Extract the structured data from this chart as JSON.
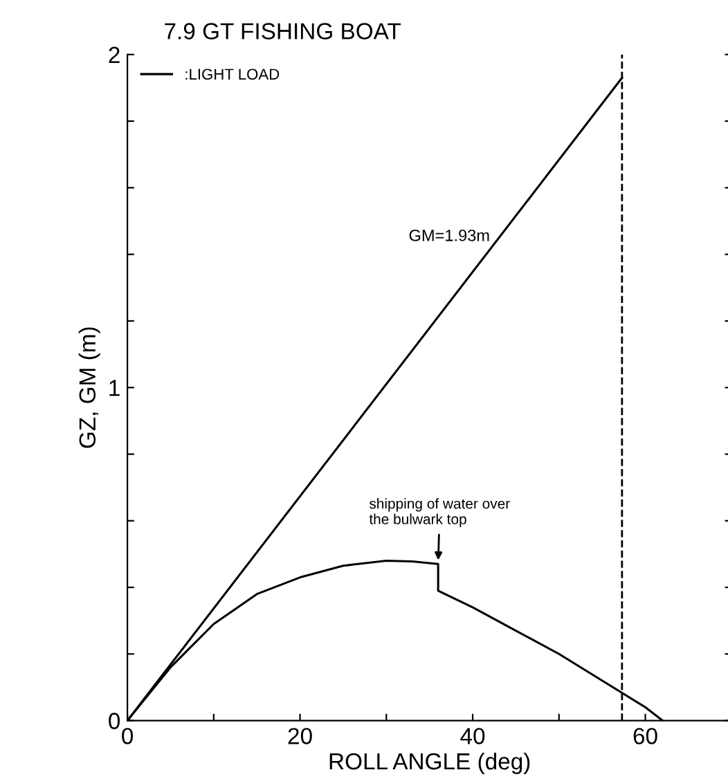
{
  "chart_data": {
    "type": "line",
    "title": "7.9 GT FISHING BOAT",
    "xlabel": "ROLL ANGLE (deg)",
    "ylabel": "GZ, GM (m)",
    "series": [
      {
        "name": ":LIGHT LOAD",
        "color": "#000000",
        "x": [
          0,
          5,
          10,
          15,
          20,
          25,
          30,
          33,
          36,
          36,
          40,
          45,
          50,
          55,
          60,
          62
        ],
        "values": [
          0,
          0.16,
          0.29,
          0.38,
          0.43,
          0.465,
          0.48,
          0.478,
          0.47,
          0.39,
          0.34,
          0.27,
          0.2,
          0.12,
          0.04,
          0
        ]
      },
      {
        "color": "#000000",
        "x": [
          0,
          57.3
        ],
        "values": [
          0,
          1.93
        ]
      }
    ],
    "ref_lines": [
      {
        "axis": "x",
        "value": 57.3,
        "label": null,
        "line_style": "dashed",
        "color": "#000000"
      }
    ],
    "annotations": [
      {
        "text": "GM=1.93m",
        "x": 42,
        "y": 1.44
      },
      {
        "text": "shipping of water over\nthe bulwark top",
        "x": 36,
        "y": 0.47
      }
    ],
    "xlim": [
      0,
      70
    ],
    "xticks": [
      0,
      {
        "value": 10,
        "label": null
      },
      20,
      {
        "value": 30,
        "label": null
      },
      40,
      {
        "value": 50,
        "label": null
      },
      60
    ],
    "ylim": [
      0,
      2
    ],
    "yticks": [
      0,
      {
        "value": 0.2,
        "label": null
      },
      {
        "value": 0.4,
        "label": null
      },
      {
        "value": 0.6,
        "label": null
      },
      {
        "value": 0.8,
        "label": null
      },
      1,
      {
        "value": 1.2,
        "label": null
      },
      {
        "value": 1.4,
        "label": null
      },
      {
        "value": 1.6,
        "label": null
      },
      {
        "value": 1.8,
        "label": null
      },
      2
    ],
    "grid": false,
    "legend": "top left",
    "marker": "none",
    "line_style": "solid"
  }
}
